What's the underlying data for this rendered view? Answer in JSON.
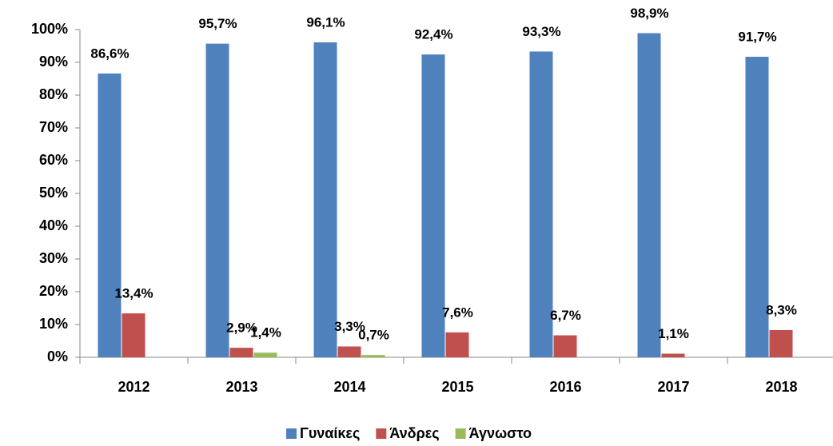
{
  "chart_data": {
    "type": "bar",
    "categories": [
      "2012",
      "2013",
      "2014",
      "2015",
      "2016",
      "2017",
      "2018"
    ],
    "series": [
      {
        "name": "Γυναίκες",
        "color": "#4f81bd",
        "values": [
          86.6,
          95.7,
          96.1,
          92.4,
          93.3,
          98.9,
          91.7
        ],
        "value_labels": [
          "86,6%",
          "95,7%",
          "96,1%",
          "92,4%",
          "93,3%",
          "98,9%",
          "91,7%"
        ]
      },
      {
        "name": "Άνδρες",
        "color": "#c0504d",
        "values": [
          13.4,
          2.9,
          3.3,
          7.6,
          6.7,
          1.1,
          8.3
        ],
        "value_labels": [
          "13,4%",
          "2,9%",
          "3,3%",
          "7,6%",
          "6,7%",
          "1,1%",
          "8,3%"
        ]
      },
      {
        "name": "Άγνωστο",
        "color": "#9bbb59",
        "values": [
          null,
          1.4,
          0.7,
          null,
          null,
          null,
          null
        ],
        "value_labels": [
          null,
          "1,4%",
          "0,7%",
          null,
          null,
          null,
          null
        ]
      }
    ],
    "ylim": [
      0,
      100
    ],
    "yticks": [
      {
        "value": 0,
        "label": "0%"
      },
      {
        "value": 10,
        "label": "10%"
      },
      {
        "value": 20,
        "label": "20%"
      },
      {
        "value": 30,
        "label": "30%"
      },
      {
        "value": 40,
        "label": "40%"
      },
      {
        "value": 50,
        "label": "50%"
      },
      {
        "value": 60,
        "label": "60%"
      },
      {
        "value": 70,
        "label": "70%"
      },
      {
        "value": 80,
        "label": "80%"
      },
      {
        "value": 90,
        "label": "90%"
      },
      {
        "value": 100,
        "label": "100%"
      }
    ],
    "legend": "bottom"
  }
}
